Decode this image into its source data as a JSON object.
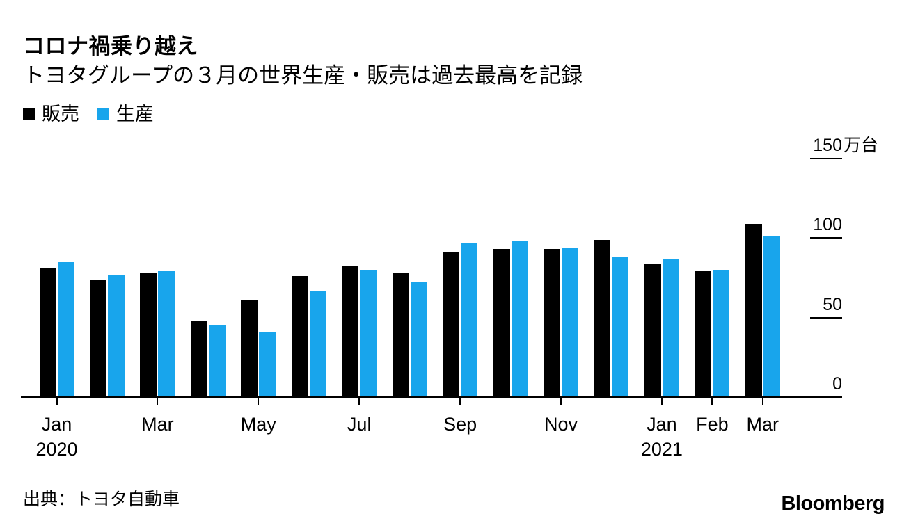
{
  "chart_data": {
    "type": "bar",
    "title": "コロナ禍乗り越え",
    "subtitle": "トヨタグループの３月の世界生産・販売は過去最高を記録",
    "unit_label": "万台",
    "categories": [
      "Jan 2020",
      "Feb 2020",
      "Mar 2020",
      "Apr 2020",
      "May 2020",
      "Jun 2020",
      "Jul 2020",
      "Aug 2020",
      "Sep 2020",
      "Oct 2020",
      "Nov 2020",
      "Dec 2020",
      "Jan 2021",
      "Feb 2021",
      "Mar 2021"
    ],
    "series": [
      {
        "key": "sales",
        "name": "販売",
        "color": "#000000",
        "values": [
          81,
          74,
          78,
          48,
          61,
          76,
          82,
          78,
          91,
          93,
          93,
          99,
          84,
          79,
          109
        ]
      },
      {
        "key": "production",
        "name": "生産",
        "color": "#18A5EC",
        "values": [
          85,
          77,
          79,
          45,
          41,
          67,
          80,
          72,
          97,
          98,
          94,
          88,
          87,
          80,
          101
        ]
      }
    ],
    "ylim": [
      0,
      150
    ],
    "grid": false,
    "legend_position": "top-left",
    "y_ticks": [
      {
        "value": 150,
        "label": "150",
        "suffix": "万台"
      },
      {
        "value": 100,
        "label": "100"
      },
      {
        "value": 50,
        "label": "50"
      },
      {
        "value": 0,
        "label": "0"
      }
    ],
    "x_ticks": [
      {
        "index": 0,
        "label": "Jan",
        "sublabel": "2020"
      },
      {
        "index": 2,
        "label": "Mar"
      },
      {
        "index": 4,
        "label": "May"
      },
      {
        "index": 6,
        "label": "Jul"
      },
      {
        "index": 8,
        "label": "Sep"
      },
      {
        "index": 10,
        "label": "Nov"
      },
      {
        "index": 12,
        "label": "Jan",
        "sublabel": "2021"
      },
      {
        "index": 13,
        "label": "Feb"
      },
      {
        "index": 14,
        "label": "Mar"
      }
    ]
  },
  "footer": {
    "source": "出典：トヨタ自動車",
    "brand": "Bloomberg"
  }
}
